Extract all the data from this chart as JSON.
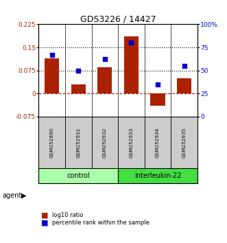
{
  "title": "GDS3226 / 14427",
  "samples": [
    "GSM252890",
    "GSM252931",
    "GSM252932",
    "GSM252933",
    "GSM252934",
    "GSM252935"
  ],
  "log10_ratio": [
    0.115,
    0.03,
    0.085,
    0.185,
    -0.04,
    0.05
  ],
  "percentile_rank": [
    67,
    50,
    62,
    80,
    35,
    55
  ],
  "groups": [
    {
      "label": "control",
      "indices": [
        0,
        1,
        2
      ],
      "color": "#aaffaa"
    },
    {
      "label": "interleukin-22",
      "indices": [
        3,
        4,
        5
      ],
      "color": "#44dd44"
    }
  ],
  "ylim_left": [
    -0.075,
    0.225
  ],
  "ylim_right": [
    0,
    100
  ],
  "yticks_left": [
    -0.075,
    0,
    0.075,
    0.15,
    0.225
  ],
  "yticks_right": [
    0,
    25,
    50,
    75,
    100
  ],
  "hlines": [
    0.075,
    0.15
  ],
  "bar_color": "#aa2200",
  "dot_color": "#0000cc",
  "bar_width": 0.55,
  "agent_label": "agent",
  "legend_bar_label": "log10 ratio",
  "legend_dot_label": "percentile rank within the sample"
}
